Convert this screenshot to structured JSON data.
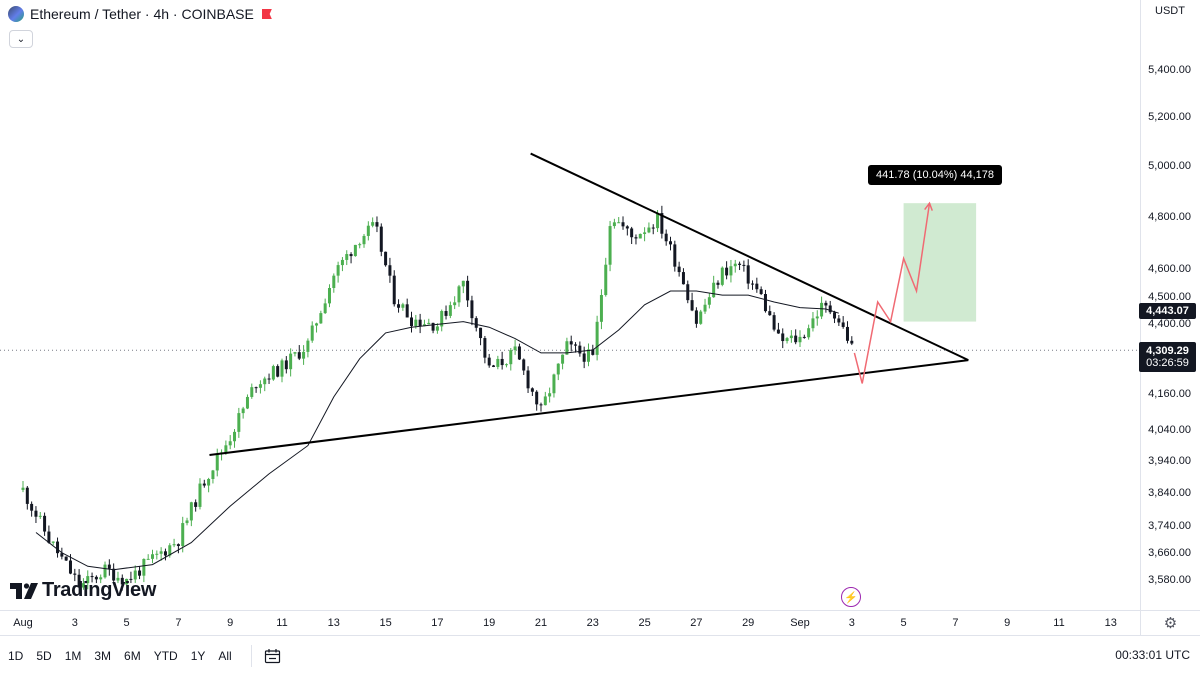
{
  "header": {
    "symbol_title": "Ethereum / Tether · 4h · COINBASE",
    "currency": "USDT",
    "collapse_glyph": "⌄"
  },
  "watermark": {
    "text": "TradingView"
  },
  "price_tags": {
    "resistance": "4,443.07",
    "current_price": "4,309.29",
    "countdown": "03:26:59"
  },
  "measure": {
    "label": "441.78 (10.04%) 44,178"
  },
  "price_axis": {
    "labels": [
      "5,400.00",
      "5,200.00",
      "5,000.00",
      "4,800.00",
      "4,600.00",
      "4,500.00",
      "4,400.00",
      "4,160.00",
      "4,040.00",
      "3,940.00",
      "3,840.00",
      "3,740.00",
      "3,660.00",
      "3,580.00"
    ]
  },
  "time_axis": {
    "labels": [
      "Aug",
      "3",
      "5",
      "7",
      "9",
      "11",
      "13",
      "15",
      "17",
      "19",
      "21",
      "23",
      "25",
      "27",
      "29",
      "Sep",
      "3",
      "5",
      "7",
      "9",
      "11",
      "13"
    ]
  },
  "toolbar": {
    "timeframes": [
      "1D",
      "5D",
      "1M",
      "3M",
      "6M",
      "YTD",
      "1Y",
      "All"
    ],
    "clock": "00:33:01 UTC"
  },
  "colors": {
    "up": "#4caf50",
    "down": "#131722",
    "ma": "#131722",
    "trendline": "#000000",
    "projection": "#f06a73",
    "target_zone": "#c8e6c9"
  },
  "icons": [
    "ethereum-icon",
    "flag-icon",
    "chevron-down-icon",
    "tradingview-logo-icon",
    "lightning-icon",
    "calendar-range-icon",
    "gear-icon"
  ],
  "chart_data": {
    "type": "candlestick",
    "symbol": "ETH/USDT",
    "interval": "4h",
    "exchange": "COINBASE",
    "y_scale": "log",
    "ylim": [
      3540,
      5490
    ],
    "x_range": [
      "Aug 1",
      "Sep 13"
    ],
    "waypoints": [
      {
        "t": 0.0,
        "p": 3850
      },
      {
        "t": 1.0,
        "p": 3700
      },
      {
        "t": 2.2,
        "p": 3560
      },
      {
        "t": 3.2,
        "p": 3610
      },
      {
        "t": 4.0,
        "p": 3580
      },
      {
        "t": 5.0,
        "p": 3640
      },
      {
        "t": 6.0,
        "p": 3700
      },
      {
        "t": 7.0,
        "p": 3880
      },
      {
        "t": 8.0,
        "p": 4020
      },
      {
        "t": 9.0,
        "p": 4200
      },
      {
        "t": 10.0,
        "p": 4250
      },
      {
        "t": 11.0,
        "p": 4330
      },
      {
        "t": 12.0,
        "p": 4580
      },
      {
        "t": 13.0,
        "p": 4720
      },
      {
        "t": 13.6,
        "p": 4760
      },
      {
        "t": 14.3,
        "p": 4500
      },
      {
        "t": 15.0,
        "p": 4420
      },
      {
        "t": 16.0,
        "p": 4400
      },
      {
        "t": 17.0,
        "p": 4550
      },
      {
        "t": 18.0,
        "p": 4240
      },
      {
        "t": 19.0,
        "p": 4300
      },
      {
        "t": 20.0,
        "p": 4100
      },
      {
        "t": 21.0,
        "p": 4320
      },
      {
        "t": 22.0,
        "p": 4280
      },
      {
        "t": 22.4,
        "p": 4560
      },
      {
        "t": 22.7,
        "p": 4810
      },
      {
        "t": 23.5,
        "p": 4720
      },
      {
        "t": 24.5,
        "p": 4790
      },
      {
        "t": 25.5,
        "p": 4560
      },
      {
        "t": 26.0,
        "p": 4410
      },
      {
        "t": 27.0,
        "p": 4590
      },
      {
        "t": 27.6,
        "p": 4620
      },
      {
        "t": 28.5,
        "p": 4500
      },
      {
        "t": 29.2,
        "p": 4340
      },
      {
        "t": 30.0,
        "p": 4350
      },
      {
        "t": 30.8,
        "p": 4460
      },
      {
        "t": 31.3,
        "p": 4450
      },
      {
        "t": 31.8,
        "p": 4360
      },
      {
        "t": 32.1,
        "p": 4300
      }
    ],
    "moving_average": [
      {
        "t": 0.5,
        "p": 3720
      },
      {
        "t": 1.5,
        "p": 3660
      },
      {
        "t": 2.5,
        "p": 3620
      },
      {
        "t": 3.5,
        "p": 3610
      },
      {
        "t": 5.0,
        "p": 3625
      },
      {
        "t": 6.5,
        "p": 3690
      },
      {
        "t": 8.0,
        "p": 3800
      },
      {
        "t": 9.5,
        "p": 3900
      },
      {
        "t": 11.0,
        "p": 3990
      },
      {
        "t": 12.0,
        "p": 4150
      },
      {
        "t": 13.0,
        "p": 4280
      },
      {
        "t": 14.0,
        "p": 4370
      },
      {
        "t": 15.0,
        "p": 4390
      },
      {
        "t": 16.0,
        "p": 4400
      },
      {
        "t": 17.0,
        "p": 4410
      },
      {
        "t": 18.0,
        "p": 4390
      },
      {
        "t": 19.0,
        "p": 4350
      },
      {
        "t": 20.0,
        "p": 4300
      },
      {
        "t": 21.0,
        "p": 4300
      },
      {
        "t": 22.0,
        "p": 4310
      },
      {
        "t": 23.0,
        "p": 4380
      },
      {
        "t": 24.0,
        "p": 4470
      },
      {
        "t": 25.0,
        "p": 4520
      },
      {
        "t": 26.0,
        "p": 4520
      },
      {
        "t": 27.0,
        "p": 4505
      },
      {
        "t": 28.0,
        "p": 4505
      },
      {
        "t": 29.0,
        "p": 4480
      },
      {
        "t": 30.0,
        "p": 4460
      },
      {
        "t": 31.0,
        "p": 4455
      },
      {
        "t": 31.5,
        "p": 4440
      }
    ],
    "trendlines": [
      {
        "name": "descending-resistance",
        "from": {
          "t": 19.6,
          "p": 5050
        },
        "to": {
          "t": 36.5,
          "p": 4275
        }
      },
      {
        "name": "ascending-support",
        "from": {
          "t": 7.2,
          "p": 3960
        },
        "to": {
          "t": 36.5,
          "p": 4275
        }
      }
    ],
    "target_zone": {
      "t_start": 34.0,
      "t_end": 36.8,
      "p_low": 4410,
      "p_high": 4852
    },
    "projection_path": [
      {
        "t": 32.1,
        "p": 4300
      },
      {
        "t": 32.4,
        "p": 4195
      },
      {
        "t": 33.0,
        "p": 4480
      },
      {
        "t": 33.5,
        "p": 4410
      },
      {
        "t": 34.0,
        "p": 4640
      },
      {
        "t": 34.5,
        "p": 4520
      },
      {
        "t": 35.0,
        "p": 4852
      }
    ],
    "current_price": 4309.29,
    "resistance_level": 4443.07,
    "measure_delta": 441.78,
    "measure_percent": 10.04
  }
}
